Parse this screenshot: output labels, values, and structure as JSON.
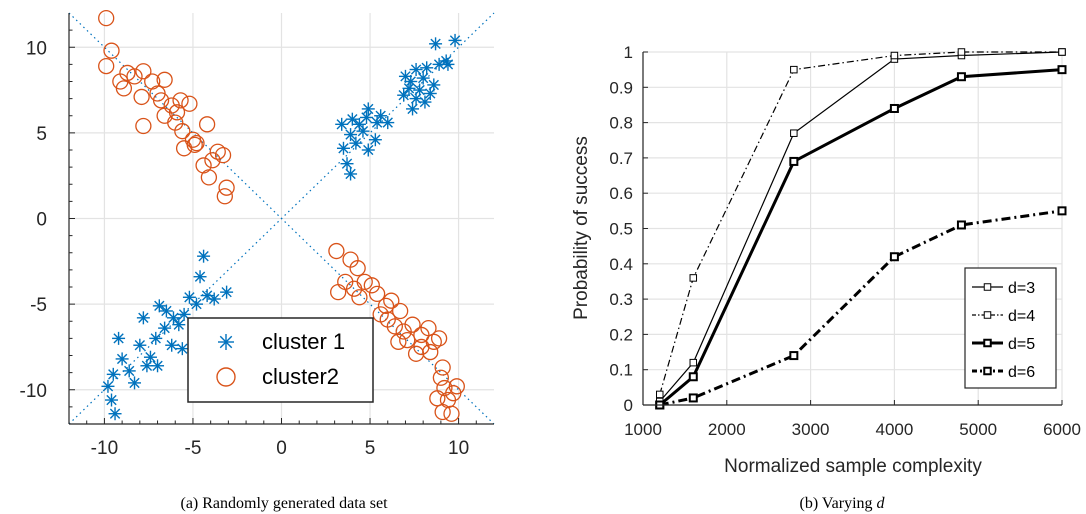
{
  "chart_data": [
    {
      "type": "scatter",
      "caption": "(a) Randomly generated data set",
      "xlim": [
        -12,
        12
      ],
      "ylim": [
        -12,
        12
      ],
      "xticks": [
        -10,
        -5,
        0,
        5,
        10
      ],
      "yticks": [
        -10,
        -5,
        0,
        5,
        10
      ],
      "grid": true,
      "legend_position": "bottom-center",
      "reference_lines": [
        {
          "from": [
            -12,
            -12
          ],
          "to": [
            12,
            12
          ],
          "style": "dotted",
          "color": "#0072BD"
        },
        {
          "from": [
            -12,
            12
          ],
          "to": [
            12,
            -12
          ],
          "style": "dotted",
          "color": "#0072BD"
        }
      ],
      "series": [
        {
          "name": "cluster 1",
          "marker": "asterisk",
          "color": "#0072BD",
          "points": [
            [
              9.8,
              10.4
            ],
            [
              8.7,
              10.2
            ],
            [
              9.3,
              9.2
            ],
            [
              9.4,
              9.0
            ],
            [
              8.2,
              8.8
            ],
            [
              8.9,
              9.0
            ],
            [
              7.6,
              8.7
            ],
            [
              8.0,
              8.2
            ],
            [
              7.3,
              8.0
            ],
            [
              7.8,
              7.5
            ],
            [
              8.4,
              7.3
            ],
            [
              7.2,
              7.6
            ],
            [
              7.6,
              7.0
            ],
            [
              8.1,
              6.8
            ],
            [
              7.4,
              6.4
            ],
            [
              6.9,
              7.2
            ],
            [
              7.0,
              8.3
            ],
            [
              8.6,
              7.8
            ],
            [
              5.6,
              6.0
            ],
            [
              4.9,
              6.4
            ],
            [
              5.4,
              5.6
            ],
            [
              4.4,
              5.5
            ],
            [
              4.0,
              5.8
            ],
            [
              3.4,
              5.5
            ],
            [
              3.9,
              4.9
            ],
            [
              4.6,
              5.1
            ],
            [
              5.3,
              4.6
            ],
            [
              4.2,
              4.4
            ],
            [
              3.5,
              4.1
            ],
            [
              3.7,
              3.2
            ],
            [
              3.9,
              2.6
            ],
            [
              4.9,
              4.0
            ],
            [
              6.0,
              5.6
            ],
            [
              4.8,
              5.9
            ],
            [
              -9.8,
              -9.8
            ],
            [
              -9.6,
              -10.6
            ],
            [
              -9.4,
              -11.4
            ],
            [
              -9.5,
              -9.1
            ],
            [
              -9.0,
              -8.2
            ],
            [
              -8.6,
              -8.9
            ],
            [
              -9.2,
              -7.0
            ],
            [
              -8.0,
              -7.4
            ],
            [
              -7.6,
              -8.6
            ],
            [
              -8.3,
              -9.6
            ],
            [
              -7.4,
              -8.1
            ],
            [
              -7.0,
              -8.6
            ],
            [
              -7.8,
              -5.8
            ],
            [
              -6.9,
              -5.1
            ],
            [
              -6.5,
              -5.4
            ],
            [
              -6.1,
              -5.8
            ],
            [
              -6.6,
              -6.4
            ],
            [
              -6.2,
              -7.4
            ],
            [
              -5.8,
              -6.2
            ],
            [
              -5.5,
              -5.6
            ],
            [
              -5.2,
              -4.6
            ],
            [
              -4.8,
              -5.0
            ],
            [
              -4.6,
              -3.4
            ],
            [
              -4.4,
              -2.2
            ],
            [
              -4.2,
              -4.5
            ],
            [
              -3.8,
              -4.7
            ],
            [
              -3.1,
              -4.3
            ],
            [
              -5.6,
              -7.6
            ],
            [
              -7.1,
              -7.0
            ]
          ]
        },
        {
          "name": "cluster2",
          "marker": "circle",
          "color": "#D95319",
          "points": [
            [
              -9.9,
              11.7
            ],
            [
              -9.6,
              9.8
            ],
            [
              -9.9,
              8.9
            ],
            [
              -8.7,
              8.5
            ],
            [
              -8.3,
              8.3
            ],
            [
              -9.1,
              8.0
            ],
            [
              -8.9,
              7.6
            ],
            [
              -7.8,
              8.6
            ],
            [
              -7.3,
              8.0
            ],
            [
              -7.9,
              7.1
            ],
            [
              -7.0,
              7.3
            ],
            [
              -6.6,
              8.1
            ],
            [
              -6.8,
              6.9
            ],
            [
              -6.2,
              6.6
            ],
            [
              -5.7,
              6.9
            ],
            [
              -5.9,
              6.2
            ],
            [
              -5.2,
              6.7
            ],
            [
              -7.8,
              5.4
            ],
            [
              -6.6,
              6.0
            ],
            [
              -6.0,
              5.6
            ],
            [
              -5.6,
              5.1
            ],
            [
              -5.0,
              4.6
            ],
            [
              -5.5,
              4.1
            ],
            [
              -4.8,
              4.4
            ],
            [
              -4.2,
              5.5
            ],
            [
              -4.4,
              3.1
            ],
            [
              -3.9,
              3.4
            ],
            [
              -4.1,
              2.4
            ],
            [
              -3.6,
              3.9
            ],
            [
              -3.3,
              3.7
            ],
            [
              -3.1,
              1.8
            ],
            [
              -3.2,
              1.3
            ],
            [
              -4.9,
              4.3
            ],
            [
              3.1,
              -1.9
            ],
            [
              3.9,
              -2.4
            ],
            [
              4.3,
              -2.9
            ],
            [
              3.6,
              -3.7
            ],
            [
              3.2,
              -4.3
            ],
            [
              4.7,
              -3.7
            ],
            [
              4.4,
              -4.6
            ],
            [
              5.1,
              -3.9
            ],
            [
              5.4,
              -4.4
            ],
            [
              5.9,
              -5.1
            ],
            [
              6.2,
              -4.8
            ],
            [
              6.0,
              -5.9
            ],
            [
              6.7,
              -5.4
            ],
            [
              4.1,
              -4.1
            ],
            [
              5.6,
              -5.6
            ],
            [
              6.4,
              -6.3
            ],
            [
              6.9,
              -6.6
            ],
            [
              7.4,
              -6.2
            ],
            [
              7.1,
              -7.1
            ],
            [
              7.9,
              -6.8
            ],
            [
              8.3,
              -6.4
            ],
            [
              8.6,
              -7.2
            ],
            [
              7.9,
              -7.5
            ],
            [
              7.6,
              -7.9
            ],
            [
              8.9,
              -7.0
            ],
            [
              9.1,
              -8.7
            ],
            [
              9.0,
              -9.3
            ],
            [
              9.2,
              -9.9
            ],
            [
              9.4,
              -10.6
            ],
            [
              9.9,
              -9.8
            ],
            [
              8.8,
              -10.5
            ],
            [
              9.1,
              -11.3
            ],
            [
              9.6,
              -11.4
            ],
            [
              9.7,
              -10.2
            ],
            [
              8.4,
              -7.8
            ],
            [
              6.6,
              -7.2
            ]
          ]
        }
      ]
    },
    {
      "type": "line",
      "caption": "(b) Varying ",
      "caption_var": "d",
      "xlabel": "Normalized sample complexity",
      "ylabel": "Probability of success",
      "xlim": [
        1000,
        6000
      ],
      "ylim": [
        0,
        1
      ],
      "xticks": [
        1000,
        2000,
        3000,
        4000,
        5000,
        6000
      ],
      "yticks": [
        0,
        0.1,
        0.2,
        0.3,
        0.4,
        0.5,
        0.6,
        0.7,
        0.8,
        0.9,
        1
      ],
      "grid": true,
      "legend_position": "bottom-right",
      "x": [
        1200,
        1600,
        2800,
        4000,
        4800,
        6000
      ],
      "series": [
        {
          "name": "d=3",
          "values": [
            0.01,
            0.12,
            0.77,
            0.98,
            0.99,
            1.0
          ],
          "style": "solid",
          "width": 1.2
        },
        {
          "name": "d=4",
          "values": [
            0.03,
            0.36,
            0.95,
            0.99,
            1.0,
            1.0
          ],
          "style": "dashdot",
          "width": 1.2
        },
        {
          "name": "d=5",
          "values": [
            0.0,
            0.08,
            0.69,
            0.84,
            0.93,
            0.95
          ],
          "style": "solid",
          "width": 3
        },
        {
          "name": "d=6",
          "values": [
            0.0,
            0.02,
            0.14,
            0.42,
            0.51,
            0.55
          ],
          "style": "dashdot",
          "width": 3
        }
      ]
    }
  ]
}
